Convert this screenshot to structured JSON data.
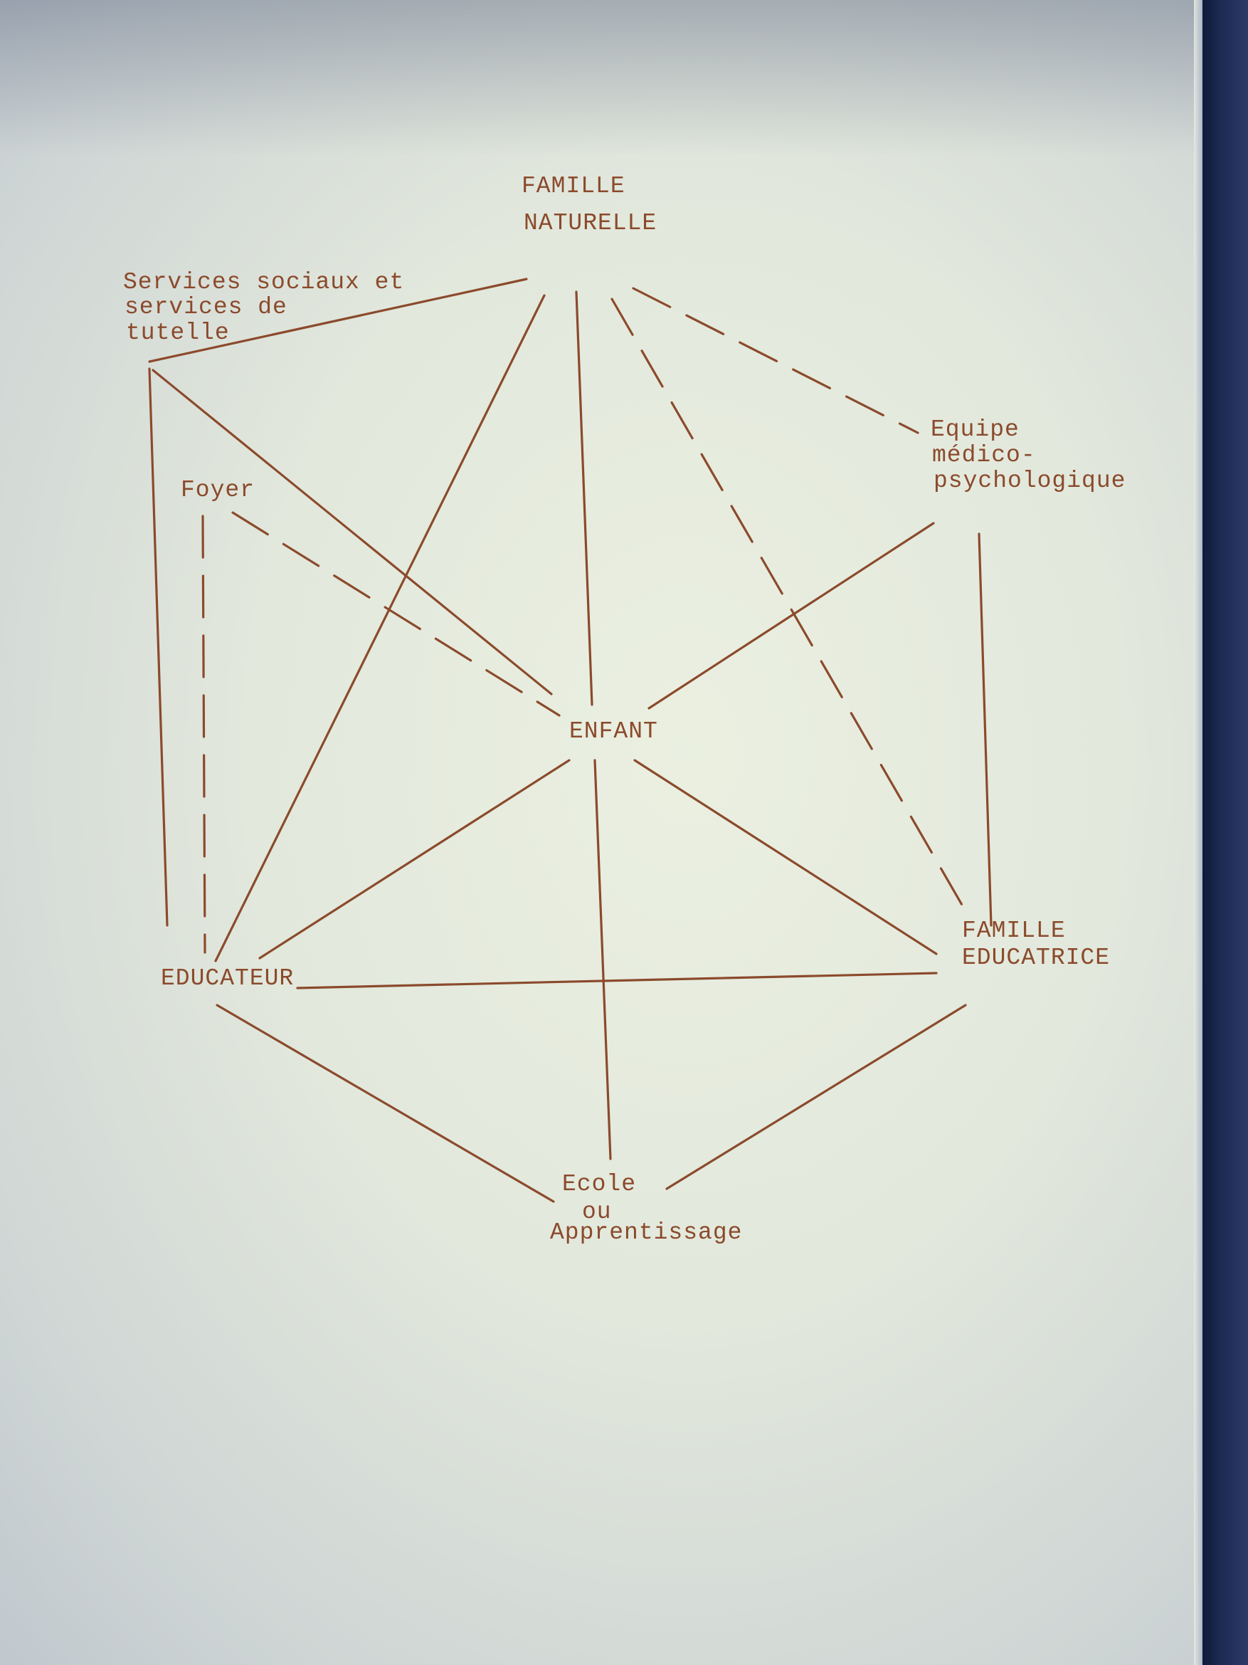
{
  "diagram": {
    "nodes": {
      "famille_naturelle": [
        "FAMILLE",
        "NATURELLE"
      ],
      "services_sociaux": [
        "Services sociaux et",
        "services de",
        "tutelle"
      ],
      "equipe": [
        "Equipe",
        "médico-",
        "psychologique"
      ],
      "foyer": [
        "Foyer"
      ],
      "enfant": [
        "ENFANT"
      ],
      "educateur": [
        "EDUCATEUR"
      ],
      "famille_educatrice": [
        "FAMILLE",
        "EDUCATRICE"
      ],
      "ecole": [
        "Ecole",
        "ou",
        "Apprentissage"
      ]
    },
    "edges": [
      {
        "from": "famille_naturelle",
        "to": "services_sociaux",
        "style": "solid"
      },
      {
        "from": "famille_naturelle",
        "to": "educateur",
        "style": "solid"
      },
      {
        "from": "famille_naturelle",
        "to": "enfant",
        "style": "solid"
      },
      {
        "from": "famille_naturelle",
        "to": "famille_educatrice",
        "style": "dashed"
      },
      {
        "from": "famille_naturelle",
        "to": "equipe",
        "style": "dashed"
      },
      {
        "from": "services_sociaux",
        "to": "educateur",
        "style": "solid"
      },
      {
        "from": "services_sociaux",
        "to": "enfant",
        "style": "solid"
      },
      {
        "from": "foyer",
        "to": "educateur",
        "style": "dashed"
      },
      {
        "from": "foyer",
        "to": "enfant",
        "style": "dashed"
      },
      {
        "from": "equipe",
        "to": "enfant",
        "style": "solid"
      },
      {
        "from": "equipe",
        "to": "famille_educatrice",
        "style": "solid"
      },
      {
        "from": "enfant",
        "to": "educateur",
        "style": "solid"
      },
      {
        "from": "enfant",
        "to": "famille_educatrice",
        "style": "solid"
      },
      {
        "from": "enfant",
        "to": "ecole",
        "style": "solid"
      },
      {
        "from": "educateur",
        "to": "famille_educatrice",
        "style": "solid"
      },
      {
        "from": "educateur",
        "to": "ecole",
        "style": "solid"
      },
      {
        "from": "famille_educatrice",
        "to": "ecole",
        "style": "solid"
      }
    ]
  }
}
